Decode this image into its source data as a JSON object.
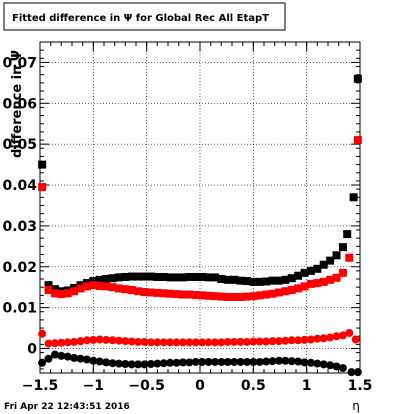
{
  "title": "Fitted difference in  Ψ  for Global Rec All EtapT",
  "footer_date": "Fri Apr 22 12:43:51 2016",
  "chart_data": {
    "type": "scatter",
    "title": "Fitted difference in  Ψ  for Global Rec All EtapT",
    "xlabel": "η",
    "ylabel": "difference in Ψ",
    "xlim": [
      -1.5,
      1.5
    ],
    "ylim": [
      -0.006,
      0.075
    ],
    "grid": true,
    "x_ticks": [
      "−1.5",
      "−1",
      "−0.5",
      "0",
      "0.5",
      "1",
      "1.5"
    ],
    "y_ticks": [
      "0",
      "0.01",
      "0.02",
      "0.03",
      "0.04",
      "0.05",
      "0.06",
      "0.07"
    ],
    "x_tick_values": [
      -1.5,
      -1,
      -0.5,
      0,
      0.5,
      1,
      1.5
    ],
    "y_tick_values": [
      0,
      0.01,
      0.02,
      0.03,
      0.04,
      0.05,
      0.06,
      0.07
    ],
    "series": [
      {
        "marker": "square",
        "color": "#000000",
        "points": [
          [
            -1.48,
            0.045
          ],
          [
            -1.42,
            0.0155
          ],
          [
            -1.36,
            0.0145
          ],
          [
            -1.3,
            0.014
          ],
          [
            -1.24,
            0.0142
          ],
          [
            -1.18,
            0.0148
          ],
          [
            -1.12,
            0.0155
          ],
          [
            -1.06,
            0.016
          ],
          [
            -1.0,
            0.0165
          ],
          [
            -0.94,
            0.0168
          ],
          [
            -0.88,
            0.017
          ],
          [
            -0.82,
            0.0172
          ],
          [
            -0.76,
            0.0174
          ],
          [
            -0.7,
            0.0175
          ],
          [
            -0.64,
            0.0176
          ],
          [
            -0.58,
            0.0176
          ],
          [
            -0.52,
            0.0176
          ],
          [
            -0.46,
            0.0176
          ],
          [
            -0.4,
            0.0175
          ],
          [
            -0.34,
            0.0175
          ],
          [
            -0.28,
            0.0174
          ],
          [
            -0.22,
            0.0174
          ],
          [
            -0.16,
            0.0174
          ],
          [
            -0.1,
            0.0175
          ],
          [
            -0.04,
            0.0175
          ],
          [
            0.02,
            0.0175
          ],
          [
            0.08,
            0.0174
          ],
          [
            0.14,
            0.0174
          ],
          [
            0.2,
            0.017
          ],
          [
            0.26,
            0.0168
          ],
          [
            0.32,
            0.0168
          ],
          [
            0.38,
            0.0166
          ],
          [
            0.44,
            0.0165
          ],
          [
            0.5,
            0.0163
          ],
          [
            0.56,
            0.0163
          ],
          [
            0.62,
            0.0164
          ],
          [
            0.68,
            0.0166
          ],
          [
            0.74,
            0.0166
          ],
          [
            0.8,
            0.0168
          ],
          [
            0.86,
            0.0172
          ],
          [
            0.92,
            0.0178
          ],
          [
            0.98,
            0.0185
          ],
          [
            1.04,
            0.019
          ],
          [
            1.1,
            0.0195
          ],
          [
            1.16,
            0.0205
          ],
          [
            1.22,
            0.0215
          ],
          [
            1.28,
            0.0228
          ],
          [
            1.34,
            0.0248
          ],
          [
            1.38,
            0.028
          ],
          [
            1.44,
            0.037
          ],
          [
            1.48,
            0.066
          ]
        ]
      },
      {
        "marker": "square",
        "color": "#ff0000",
        "points": [
          [
            -1.48,
            0.0395
          ],
          [
            -1.42,
            0.0143
          ],
          [
            -1.36,
            0.0135
          ],
          [
            -1.3,
            0.0133
          ],
          [
            -1.24,
            0.0135
          ],
          [
            -1.18,
            0.014
          ],
          [
            -1.12,
            0.0147
          ],
          [
            -1.06,
            0.0152
          ],
          [
            -1.0,
            0.0155
          ],
          [
            -0.94,
            0.0153
          ],
          [
            -0.88,
            0.0152
          ],
          [
            -0.82,
            0.015
          ],
          [
            -0.76,
            0.0147
          ],
          [
            -0.7,
            0.0145
          ],
          [
            -0.64,
            0.0143
          ],
          [
            -0.58,
            0.014
          ],
          [
            -0.52,
            0.0138
          ],
          [
            -0.46,
            0.0137
          ],
          [
            -0.4,
            0.0136
          ],
          [
            -0.34,
            0.0135
          ],
          [
            -0.28,
            0.0134
          ],
          [
            -0.22,
            0.0133
          ],
          [
            -0.16,
            0.0132
          ],
          [
            -0.1,
            0.0132
          ],
          [
            -0.04,
            0.0131
          ],
          [
            0.02,
            0.013
          ],
          [
            0.08,
            0.0129
          ],
          [
            0.14,
            0.0128
          ],
          [
            0.2,
            0.0127
          ],
          [
            0.26,
            0.0126
          ],
          [
            0.32,
            0.0126
          ],
          [
            0.38,
            0.0126
          ],
          [
            0.44,
            0.0127
          ],
          [
            0.5,
            0.0128
          ],
          [
            0.56,
            0.013
          ],
          [
            0.62,
            0.0132
          ],
          [
            0.68,
            0.0134
          ],
          [
            0.74,
            0.0137
          ],
          [
            0.8,
            0.014
          ],
          [
            0.86,
            0.0143
          ],
          [
            0.92,
            0.0147
          ],
          [
            0.98,
            0.0152
          ],
          [
            1.04,
            0.0158
          ],
          [
            1.1,
            0.016
          ],
          [
            1.16,
            0.0163
          ],
          [
            1.22,
            0.0168
          ],
          [
            1.28,
            0.0173
          ],
          [
            1.34,
            0.0185
          ],
          [
            1.4,
            0.0222
          ],
          [
            1.48,
            0.051
          ]
        ]
      },
      {
        "marker": "circle",
        "color": "#ff0000",
        "points": [
          [
            -1.48,
            0.0036
          ],
          [
            -1.42,
            0.0012
          ],
          [
            -1.36,
            0.0013
          ],
          [
            -1.3,
            0.0014
          ],
          [
            -1.24,
            0.0015
          ],
          [
            -1.18,
            0.0016
          ],
          [
            -1.12,
            0.0018
          ],
          [
            -1.06,
            0.002
          ],
          [
            -1.0,
            0.0021
          ],
          [
            -0.94,
            0.0022
          ],
          [
            -0.88,
            0.0021
          ],
          [
            -0.82,
            0.002
          ],
          [
            -0.76,
            0.0019
          ],
          [
            -0.7,
            0.0018
          ],
          [
            -0.64,
            0.0017
          ],
          [
            -0.58,
            0.0016
          ],
          [
            -0.52,
            0.0016
          ],
          [
            -0.46,
            0.0015
          ],
          [
            -0.4,
            0.0015
          ],
          [
            -0.34,
            0.0015
          ],
          [
            -0.28,
            0.0015
          ],
          [
            -0.22,
            0.0015
          ],
          [
            -0.16,
            0.0015
          ],
          [
            -0.1,
            0.0015
          ],
          [
            -0.04,
            0.0015
          ],
          [
            0.02,
            0.0015
          ],
          [
            0.08,
            0.0015
          ],
          [
            0.14,
            0.0015
          ],
          [
            0.2,
            0.0015
          ],
          [
            0.26,
            0.0016
          ],
          [
            0.32,
            0.0016
          ],
          [
            0.38,
            0.0016
          ],
          [
            0.44,
            0.0016
          ],
          [
            0.5,
            0.0017
          ],
          [
            0.56,
            0.0017
          ],
          [
            0.62,
            0.0017
          ],
          [
            0.68,
            0.0018
          ],
          [
            0.74,
            0.0018
          ],
          [
            0.8,
            0.0019
          ],
          [
            0.86,
            0.002
          ],
          [
            0.92,
            0.002
          ],
          [
            0.98,
            0.0021
          ],
          [
            1.04,
            0.0022
          ],
          [
            1.1,
            0.0024
          ],
          [
            1.16,
            0.0025
          ],
          [
            1.22,
            0.0027
          ],
          [
            1.28,
            0.003
          ],
          [
            1.34,
            0.0032
          ],
          [
            1.4,
            0.0038
          ],
          [
            1.46,
            0.0022
          ]
        ]
      },
      {
        "marker": "circle",
        "color": "#000000",
        "points": [
          [
            -1.48,
            -0.0035
          ],
          [
            -1.42,
            -0.0025
          ],
          [
            -1.36,
            -0.0015
          ],
          [
            -1.3,
            -0.0018
          ],
          [
            -1.24,
            -0.002
          ],
          [
            -1.18,
            -0.0023
          ],
          [
            -1.12,
            -0.0025
          ],
          [
            -1.06,
            -0.0027
          ],
          [
            -1.0,
            -0.003
          ],
          [
            -0.94,
            -0.0032
          ],
          [
            -0.88,
            -0.0034
          ],
          [
            -0.82,
            -0.0036
          ],
          [
            -0.76,
            -0.0037
          ],
          [
            -0.7,
            -0.0038
          ],
          [
            -0.64,
            -0.0039
          ],
          [
            -0.58,
            -0.0039
          ],
          [
            -0.52,
            -0.0039
          ],
          [
            -0.46,
            -0.0038
          ],
          [
            -0.4,
            -0.0037
          ],
          [
            -0.34,
            -0.0036
          ],
          [
            -0.28,
            -0.0035
          ],
          [
            -0.22,
            -0.0035
          ],
          [
            -0.16,
            -0.0034
          ],
          [
            -0.1,
            -0.0034
          ],
          [
            -0.04,
            -0.0033
          ],
          [
            0.02,
            -0.0033
          ],
          [
            0.08,
            -0.0033
          ],
          [
            0.14,
            -0.0033
          ],
          [
            0.2,
            -0.0033
          ],
          [
            0.26,
            -0.0033
          ],
          [
            0.32,
            -0.0033
          ],
          [
            0.38,
            -0.0033
          ],
          [
            0.44,
            -0.0033
          ],
          [
            0.5,
            -0.0033
          ],
          [
            0.56,
            -0.0033
          ],
          [
            0.62,
            -0.0032
          ],
          [
            0.68,
            -0.0031
          ],
          [
            0.74,
            -0.003
          ],
          [
            0.8,
            -0.003
          ],
          [
            0.86,
            -0.0031
          ],
          [
            0.92,
            -0.0032
          ],
          [
            0.98,
            -0.0034
          ],
          [
            1.04,
            -0.0035
          ],
          [
            1.1,
            -0.0037
          ],
          [
            1.16,
            -0.0039
          ],
          [
            1.22,
            -0.0041
          ],
          [
            1.28,
            -0.0044
          ],
          [
            1.34,
            -0.0048
          ],
          [
            1.42,
            -0.0058
          ],
          [
            1.48,
            -0.0058
          ]
        ]
      }
    ]
  }
}
